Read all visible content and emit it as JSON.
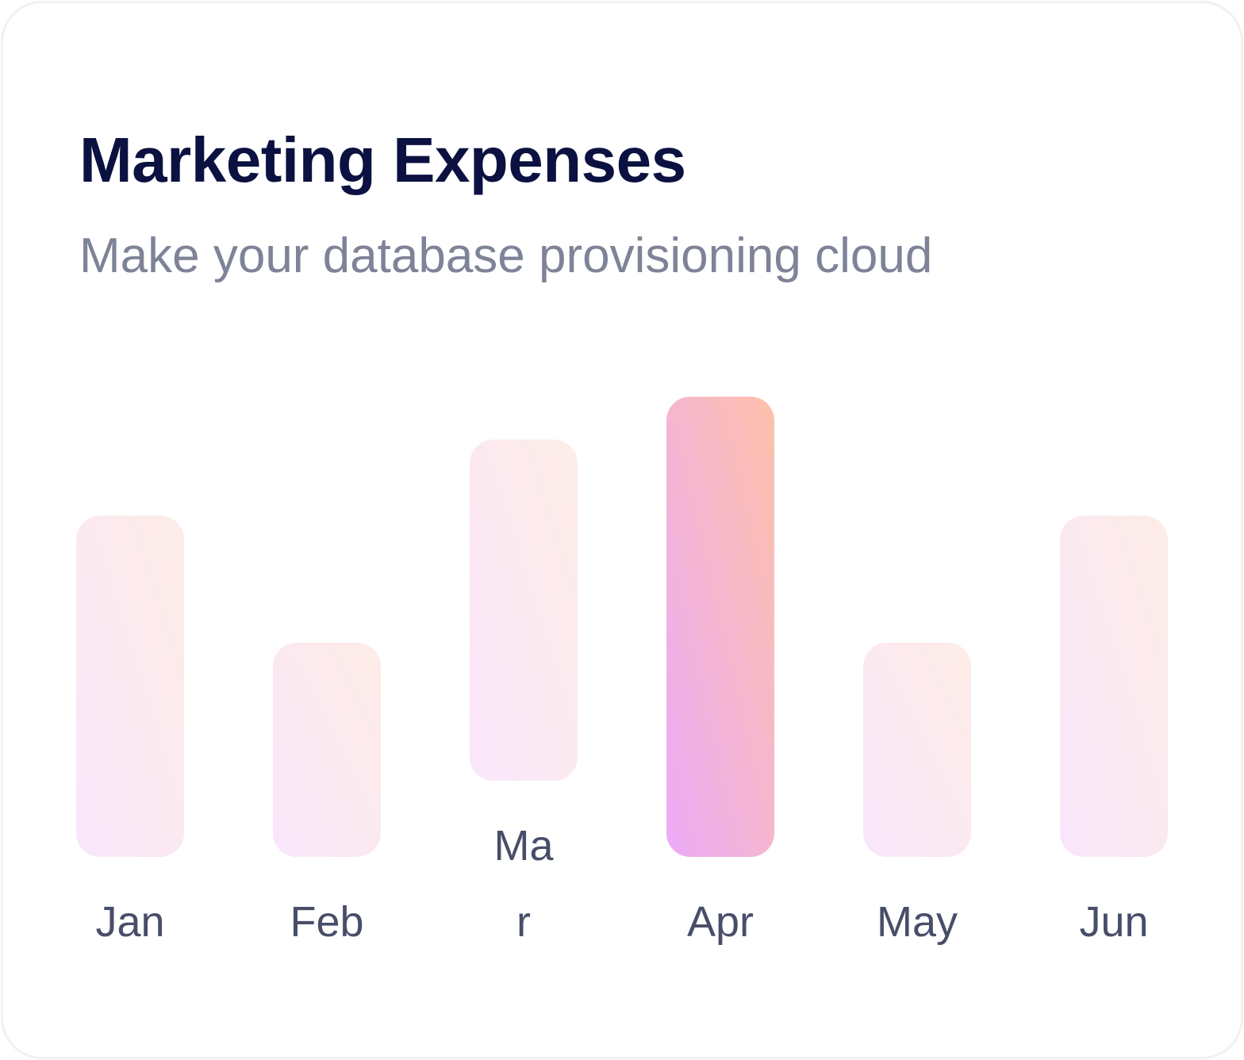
{
  "card": {
    "title": "Marketing Expenses",
    "subtitle": "Make your database provisioning cloud"
  },
  "colors": {
    "title": "#0b1140",
    "subtitle": "#7e8397",
    "label": "#484e69",
    "bar_light_start": "#f9e6fb",
    "bar_light_end": "#fdece6",
    "bar_highlight_start": "#ecabf7",
    "bar_highlight_end": "#fec0aa"
  },
  "chart_data": {
    "type": "bar",
    "categories": [
      "Jan",
      "Feb",
      "Mar",
      "Apr",
      "May",
      "Jun"
    ],
    "category_label_lines": [
      [
        "Jan"
      ],
      [
        "Feb"
      ],
      [
        "Ma",
        "r"
      ],
      [
        "Apr"
      ],
      [
        "May"
      ],
      [
        "Jun"
      ]
    ],
    "values": [
      43,
      27,
      43,
      58,
      27,
      43
    ],
    "bar_offsets": [
      0,
      0,
      9.6,
      0,
      0,
      0
    ],
    "highlighted": "Apr",
    "ylim": [
      0,
      58
    ],
    "grid": false,
    "legend": "none"
  }
}
